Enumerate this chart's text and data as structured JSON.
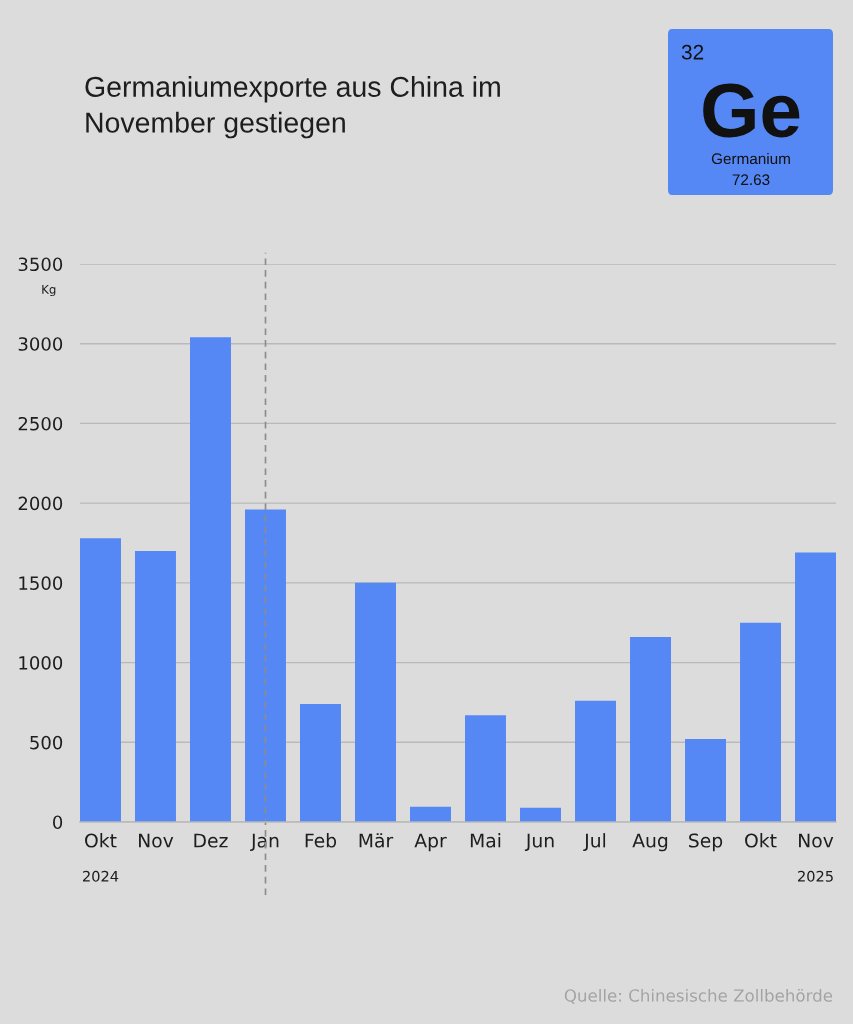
{
  "chart_data": {
    "type": "bar",
    "title": "Germaniumexporte aus China im\nNovember gestiegen",
    "ylabel": "Kg",
    "categories": [
      "Okt\n2024",
      "Nov",
      "Dez",
      "Jan",
      "Feb",
      "Mär",
      "Apr",
      "Mai",
      "Jun",
      "Jul",
      "Aug",
      "Sep",
      "Okt",
      "Nov\n2025"
    ],
    "values": [
      1780,
      1700,
      3040,
      1960,
      740,
      1500,
      95,
      670,
      90,
      760,
      1160,
      520,
      1250,
      1690
    ],
    "color": "#5588f5",
    "ylim": [
      0,
      3500
    ],
    "yticks": [
      0,
      500,
      1000,
      1500,
      2000,
      2500,
      3000,
      3500
    ],
    "grid": "y",
    "ref_lines": [
      {
        "axis": "x",
        "value": "Jan",
        "color": "#8c8c8c",
        "line_style": "dashed"
      }
    ],
    "annotations": [
      "32",
      "Ge",
      "Germanium",
      "72.63",
      "Quelle: Chinesische Zollbehörde"
    ]
  }
}
